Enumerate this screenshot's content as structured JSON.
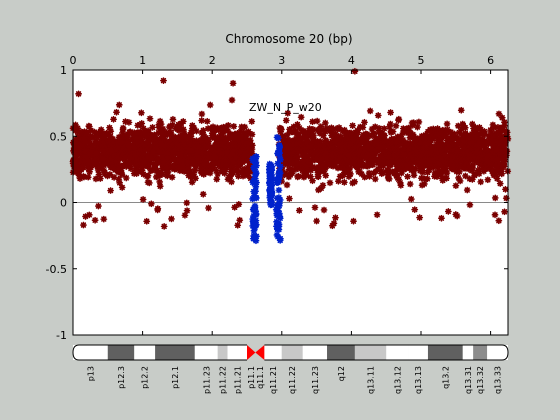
{
  "figure": {
    "background": "#c8ccc8",
    "plot_background": "#ffffff"
  },
  "chart_data": {
    "type": "scatter",
    "title": "Chromosome 20 (bp)",
    "overlay_label": "ZW_N_P_w20",
    "xlim": [
      0,
      6.25
    ],
    "ylim": [
      -1,
      1
    ],
    "x_ticks": [
      {
        "value": 0,
        "label": "0"
      },
      {
        "value": 1,
        "label": "1"
      },
      {
        "value": 2,
        "label": "2"
      },
      {
        "value": 3,
        "label": "3"
      },
      {
        "value": 4,
        "label": "4"
      },
      {
        "value": 5,
        "label": "5"
      },
      {
        "value": 6,
        "label": "6"
      }
    ],
    "y_ticks": [
      {
        "value": 1,
        "label": "1"
      },
      {
        "value": 0.5,
        "label": "0.5"
      },
      {
        "value": 0,
        "label": "0"
      },
      {
        "value": -0.5,
        "label": "-0.5"
      },
      {
        "value": -1,
        "label": "-1"
      }
    ],
    "zero_line": true,
    "grid": false,
    "legend": "none",
    "series": [
      {
        "color": "#7a0000",
        "marker": "asterisk",
        "segments": [
          {
            "x_start": 0.0,
            "x_end": 2.58,
            "center": 0.38,
            "spread": 0.2
          },
          {
            "x_start": 2.96,
            "x_end": 6.25,
            "center": 0.38,
            "spread": 0.2
          }
        ],
        "representative_points": [
          {
            "x": 0.15,
            "y": -0.17
          },
          {
            "x": 0.08,
            "y": 0.82
          },
          {
            "x": 1.3,
            "y": 0.92
          },
          {
            "x": 2.3,
            "y": 0.9
          },
          {
            "x": 3.5,
            "y": -0.14
          },
          {
            "x": 4.05,
            "y": 0.99
          },
          {
            "x": 5.5,
            "y": -0.09
          },
          {
            "x": 6.2,
            "y": -0.07
          }
        ]
      },
      {
        "color": "#0022cc",
        "marker": "asterisk",
        "segments": [
          {
            "x_start": 2.58,
            "x_end": 2.64,
            "y_top": 0.35,
            "y_bottom": -0.3
          },
          {
            "x_start": 2.82,
            "x_end": 2.86,
            "y_top": 0.3,
            "y_bottom": -0.02
          },
          {
            "x_start": 2.92,
            "x_end": 2.98,
            "y_top": 0.5,
            "y_bottom": -0.3
          }
        ]
      }
    ],
    "ideogram": {
      "xlim": [
        0,
        6.25
      ],
      "colors": {
        "gneg": "#ffffff",
        "gpos100": "#404040",
        "gpos75": "#606060",
        "gpos50": "#8c8c8c",
        "gpos25": "#c8c8c8",
        "acen": "#ff0000",
        "outline": "#000000"
      },
      "bands": [
        {
          "name": "p13",
          "start": 0.0,
          "end": 0.5,
          "stain": "gneg"
        },
        {
          "name": "p12.3",
          "start": 0.5,
          "end": 0.88,
          "stain": "gpos75"
        },
        {
          "name": "p12.2",
          "start": 0.88,
          "end": 1.18,
          "stain": "gneg"
        },
        {
          "name": "p12.1",
          "start": 1.18,
          "end": 1.75,
          "stain": "gpos75"
        },
        {
          "name": "p11.23",
          "start": 1.75,
          "end": 2.08,
          "stain": "gneg"
        },
        {
          "name": "p11.22",
          "start": 2.08,
          "end": 2.22,
          "stain": "gpos25"
        },
        {
          "name": "p11.21",
          "start": 2.22,
          "end": 2.5,
          "stain": "gneg"
        },
        {
          "name": "p11.1",
          "start": 2.5,
          "end": 2.62,
          "stain": "acen"
        },
        {
          "name": "q11.1",
          "start": 2.62,
          "end": 2.75,
          "stain": "acen"
        },
        {
          "name": "q11.21",
          "start": 2.75,
          "end": 3.0,
          "stain": "gneg"
        },
        {
          "name": "q11.22",
          "start": 3.0,
          "end": 3.3,
          "stain": "gpos25"
        },
        {
          "name": "q11.23",
          "start": 3.3,
          "end": 3.65,
          "stain": "gneg"
        },
        {
          "name": "q12",
          "start": 3.65,
          "end": 4.05,
          "stain": "gpos75"
        },
        {
          "name": "q13.11",
          "start": 4.05,
          "end": 4.5,
          "stain": "gpos25"
        },
        {
          "name": "q13.12",
          "start": 4.5,
          "end": 4.82,
          "stain": "gneg"
        },
        {
          "name": "q13.13",
          "start": 4.82,
          "end": 5.1,
          "stain": "gneg"
        },
        {
          "name": "q13.2",
          "start": 5.1,
          "end": 5.6,
          "stain": "gpos75"
        },
        {
          "name": "q13.31",
          "start": 5.6,
          "end": 5.75,
          "stain": "gneg"
        },
        {
          "name": "q13.32",
          "start": 5.75,
          "end": 5.95,
          "stain": "gpos50"
        },
        {
          "name": "q13.33",
          "start": 5.95,
          "end": 6.25,
          "stain": "gneg"
        }
      ]
    }
  }
}
